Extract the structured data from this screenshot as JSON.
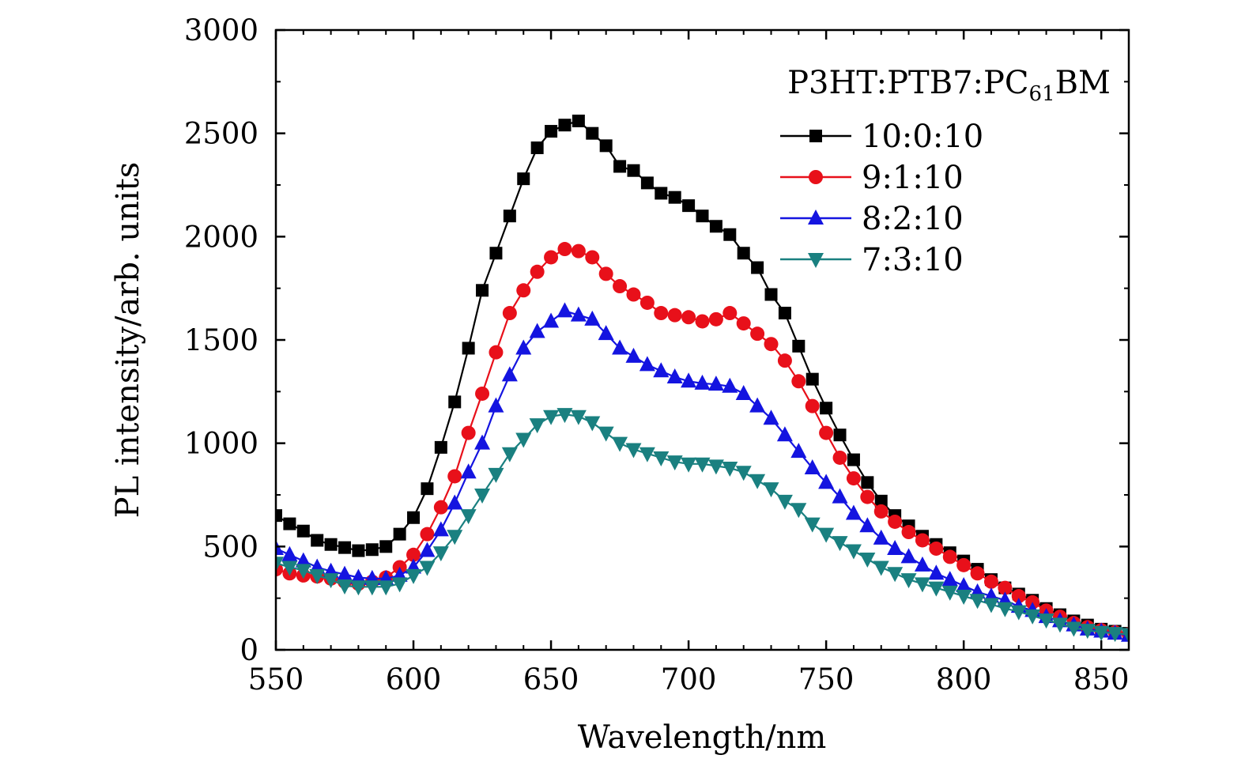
{
  "chart_data": {
    "type": "line",
    "title": "",
    "xlabel": "Wavelength/nm",
    "ylabel": "PL intensity/arb. units",
    "xlim": [
      550,
      860
    ],
    "ylim": [
      0,
      3000
    ],
    "xticks": [
      550,
      600,
      650,
      700,
      750,
      800,
      850
    ],
    "yticks": [
      0,
      500,
      1000,
      1500,
      2000,
      2500,
      3000
    ],
    "grid": false,
    "legend": {
      "placement": "top-right",
      "title_main": "P3HT:PTB7:PC",
      "title_sub": "61",
      "title_tail": "BM"
    },
    "series": [
      {
        "name": "10:0:10",
        "color": "#000000",
        "marker": "square",
        "points": [
          [
            550,
            650
          ],
          [
            555,
            610
          ],
          [
            560,
            575
          ],
          [
            565,
            530
          ],
          [
            570,
            510
          ],
          [
            575,
            495
          ],
          [
            580,
            480
          ],
          [
            585,
            485
          ],
          [
            590,
            500
          ],
          [
            595,
            560
          ],
          [
            600,
            640
          ],
          [
            605,
            780
          ],
          [
            610,
            980
          ],
          [
            615,
            1200
          ],
          [
            620,
            1460
          ],
          [
            625,
            1740
          ],
          [
            630,
            1920
          ],
          [
            635,
            2100
          ],
          [
            640,
            2280
          ],
          [
            645,
            2430
          ],
          [
            650,
            2510
          ],
          [
            655,
            2540
          ],
          [
            660,
            2560
          ],
          [
            665,
            2500
          ],
          [
            670,
            2440
          ],
          [
            675,
            2340
          ],
          [
            680,
            2320
          ],
          [
            685,
            2260
          ],
          [
            690,
            2210
          ],
          [
            695,
            2190
          ],
          [
            700,
            2150
          ],
          [
            705,
            2100
          ],
          [
            710,
            2050
          ],
          [
            715,
            2010
          ],
          [
            720,
            1920
          ],
          [
            725,
            1850
          ],
          [
            730,
            1720
          ],
          [
            735,
            1630
          ],
          [
            740,
            1470
          ],
          [
            745,
            1310
          ],
          [
            750,
            1170
          ],
          [
            755,
            1040
          ],
          [
            760,
            920
          ],
          [
            765,
            810
          ],
          [
            770,
            720
          ],
          [
            775,
            650
          ],
          [
            780,
            600
          ],
          [
            785,
            550
          ],
          [
            790,
            510
          ],
          [
            795,
            470
          ],
          [
            800,
            430
          ],
          [
            805,
            390
          ],
          [
            810,
            340
          ],
          [
            815,
            300
          ],
          [
            820,
            270
          ],
          [
            825,
            240
          ],
          [
            830,
            200
          ],
          [
            835,
            170
          ],
          [
            840,
            140
          ],
          [
            845,
            120
          ],
          [
            850,
            100
          ],
          [
            855,
            90
          ],
          [
            860,
            80
          ]
        ]
      },
      {
        "name": "9:1:10",
        "color": "#e8101a",
        "marker": "circle",
        "points": [
          [
            550,
            390
          ],
          [
            555,
            370
          ],
          [
            560,
            360
          ],
          [
            565,
            355
          ],
          [
            570,
            345
          ],
          [
            575,
            330
          ],
          [
            580,
            320
          ],
          [
            585,
            330
          ],
          [
            590,
            350
          ],
          [
            595,
            400
          ],
          [
            600,
            460
          ],
          [
            605,
            560
          ],
          [
            610,
            690
          ],
          [
            615,
            840
          ],
          [
            620,
            1050
          ],
          [
            625,
            1240
          ],
          [
            630,
            1440
          ],
          [
            635,
            1630
          ],
          [
            640,
            1740
          ],
          [
            645,
            1830
          ],
          [
            650,
            1900
          ],
          [
            655,
            1940
          ],
          [
            660,
            1930
          ],
          [
            665,
            1900
          ],
          [
            670,
            1820
          ],
          [
            675,
            1760
          ],
          [
            680,
            1720
          ],
          [
            685,
            1680
          ],
          [
            690,
            1630
          ],
          [
            695,
            1620
          ],
          [
            700,
            1610
          ],
          [
            705,
            1590
          ],
          [
            710,
            1600
          ],
          [
            715,
            1630
          ],
          [
            720,
            1580
          ],
          [
            725,
            1530
          ],
          [
            730,
            1480
          ],
          [
            735,
            1400
          ],
          [
            740,
            1300
          ],
          [
            745,
            1180
          ],
          [
            750,
            1050
          ],
          [
            755,
            930
          ],
          [
            760,
            830
          ],
          [
            765,
            740
          ],
          [
            770,
            670
          ],
          [
            775,
            620
          ],
          [
            780,
            570
          ],
          [
            785,
            530
          ],
          [
            790,
            490
          ],
          [
            795,
            450
          ],
          [
            800,
            410
          ],
          [
            805,
            370
          ],
          [
            810,
            330
          ],
          [
            815,
            300
          ],
          [
            820,
            260
          ],
          [
            825,
            230
          ],
          [
            830,
            190
          ],
          [
            835,
            160
          ],
          [
            840,
            130
          ],
          [
            845,
            110
          ],
          [
            850,
            95
          ],
          [
            855,
            85
          ],
          [
            860,
            75
          ]
        ]
      },
      {
        "name": "8:2:10",
        "color": "#1414e0",
        "marker": "triangle-up",
        "points": [
          [
            550,
            490
          ],
          [
            555,
            460
          ],
          [
            560,
            430
          ],
          [
            565,
            400
          ],
          [
            570,
            380
          ],
          [
            575,
            365
          ],
          [
            580,
            350
          ],
          [
            585,
            345
          ],
          [
            590,
            345
          ],
          [
            595,
            360
          ],
          [
            600,
            400
          ],
          [
            605,
            480
          ],
          [
            610,
            580
          ],
          [
            615,
            710
          ],
          [
            620,
            860
          ],
          [
            625,
            1000
          ],
          [
            630,
            1180
          ],
          [
            635,
            1330
          ],
          [
            640,
            1460
          ],
          [
            645,
            1540
          ],
          [
            650,
            1590
          ],
          [
            655,
            1640
          ],
          [
            660,
            1620
          ],
          [
            665,
            1600
          ],
          [
            670,
            1530
          ],
          [
            675,
            1460
          ],
          [
            680,
            1420
          ],
          [
            685,
            1380
          ],
          [
            690,
            1350
          ],
          [
            695,
            1320
          ],
          [
            700,
            1300
          ],
          [
            705,
            1290
          ],
          [
            710,
            1285
          ],
          [
            715,
            1275
          ],
          [
            720,
            1240
          ],
          [
            725,
            1180
          ],
          [
            730,
            1120
          ],
          [
            735,
            1040
          ],
          [
            740,
            960
          ],
          [
            745,
            880
          ],
          [
            750,
            810
          ],
          [
            755,
            740
          ],
          [
            760,
            660
          ],
          [
            765,
            600
          ],
          [
            770,
            540
          ],
          [
            775,
            490
          ],
          [
            780,
            450
          ],
          [
            785,
            410
          ],
          [
            790,
            370
          ],
          [
            795,
            340
          ],
          [
            800,
            310
          ],
          [
            805,
            280
          ],
          [
            810,
            260
          ],
          [
            815,
            240
          ],
          [
            820,
            210
          ],
          [
            825,
            190
          ],
          [
            830,
            160
          ],
          [
            835,
            140
          ],
          [
            840,
            120
          ],
          [
            845,
            100
          ],
          [
            850,
            90
          ],
          [
            855,
            80
          ],
          [
            860,
            70
          ]
        ]
      },
      {
        "name": "7:3:10",
        "color": "#1a8080",
        "marker": "triangle-down",
        "points": [
          [
            550,
            420
          ],
          [
            555,
            400
          ],
          [
            560,
            385
          ],
          [
            565,
            360
          ],
          [
            570,
            340
          ],
          [
            575,
            310
          ],
          [
            580,
            305
          ],
          [
            585,
            305
          ],
          [
            590,
            305
          ],
          [
            595,
            320
          ],
          [
            600,
            360
          ],
          [
            605,
            400
          ],
          [
            610,
            470
          ],
          [
            615,
            550
          ],
          [
            620,
            650
          ],
          [
            625,
            750
          ],
          [
            630,
            850
          ],
          [
            635,
            950
          ],
          [
            640,
            1020
          ],
          [
            645,
            1090
          ],
          [
            650,
            1130
          ],
          [
            655,
            1140
          ],
          [
            660,
            1130
          ],
          [
            665,
            1100
          ],
          [
            670,
            1050
          ],
          [
            675,
            1000
          ],
          [
            680,
            970
          ],
          [
            685,
            950
          ],
          [
            690,
            930
          ],
          [
            695,
            910
          ],
          [
            700,
            900
          ],
          [
            705,
            900
          ],
          [
            710,
            890
          ],
          [
            715,
            880
          ],
          [
            720,
            860
          ],
          [
            725,
            820
          ],
          [
            730,
            780
          ],
          [
            735,
            720
          ],
          [
            740,
            680
          ],
          [
            745,
            610
          ],
          [
            750,
            560
          ],
          [
            755,
            520
          ],
          [
            760,
            480
          ],
          [
            765,
            440
          ],
          [
            770,
            400
          ],
          [
            775,
            370
          ],
          [
            780,
            340
          ],
          [
            785,
            320
          ],
          [
            790,
            300
          ],
          [
            795,
            280
          ],
          [
            800,
            260
          ],
          [
            805,
            240
          ],
          [
            810,
            220
          ],
          [
            815,
            200
          ],
          [
            820,
            185
          ],
          [
            825,
            165
          ],
          [
            830,
            145
          ],
          [
            835,
            125
          ],
          [
            840,
            105
          ],
          [
            845,
            95
          ],
          [
            850,
            85
          ],
          [
            855,
            80
          ],
          [
            860,
            75
          ]
        ]
      }
    ]
  }
}
